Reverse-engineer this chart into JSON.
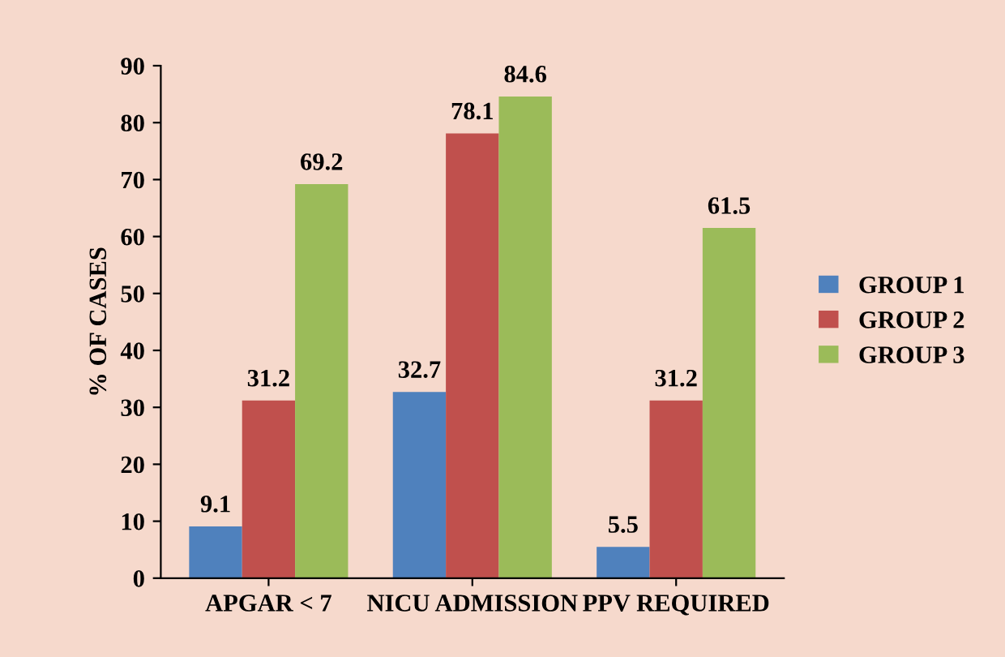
{
  "chart_data": {
    "type": "bar",
    "ylabel": "% OF CASES",
    "categories": [
      "APGAR < 7",
      "NICU ADMISSION",
      "PPV REQUIRED"
    ],
    "series": [
      {
        "name": "GROUP 1",
        "color": "#4f81bd",
        "values": [
          9.1,
          32.7,
          5.5
        ]
      },
      {
        "name": "GROUP 2",
        "color": "#c0504d",
        "values": [
          31.2,
          78.1,
          31.2
        ]
      },
      {
        "name": "GROUP 3",
        "color": "#9bbb59",
        "values": [
          69.2,
          84.6,
          61.5
        ]
      }
    ],
    "ylim": [
      0,
      90
    ],
    "yticks": [
      0,
      10,
      20,
      30,
      40,
      50,
      60,
      70,
      80,
      90
    ],
    "grid": false,
    "legend": "right",
    "data_labels": true
  }
}
